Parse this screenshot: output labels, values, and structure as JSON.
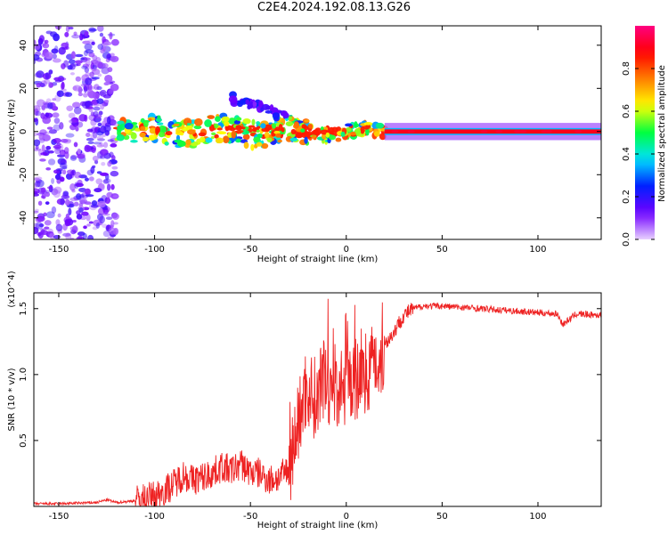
{
  "title": "C2E4.2024.192.08.13.G26",
  "chart_data": [
    {
      "type": "heatmap",
      "xlabel": "Height of straight line (km)",
      "ylabel": "Frequency (Hz)",
      "xlim": [
        -163,
        133
      ],
      "ylim": [
        -50,
        49
      ],
      "x_ticks": [
        -150,
        -100,
        -50,
        0,
        50,
        100
      ],
      "y_ticks": [
        -40,
        -20,
        0,
        20,
        40
      ],
      "colorbar": {
        "label": "Normalized spectral amplitude",
        "range": [
          0,
          1
        ],
        "ticks": [
          0.0,
          0.2,
          0.4,
          0.6,
          0.8
        ],
        "colormap": [
          "#e8d0ff",
          "#7000ff",
          "#0020ff",
          "#00e0ff",
          "#00ff40",
          "#ffff00",
          "#ff8000",
          "#ff0000",
          "#ff0080"
        ]
      },
      "regions": [
        {
          "x_range": [
            -163,
            -120
          ],
          "freq_range": [
            -50,
            49
          ],
          "amplitude": [
            0.05,
            0.2
          ],
          "pattern": "scattered noise"
        },
        {
          "x_range": [
            -120,
            20
          ],
          "freq_range": [
            -6,
            6
          ],
          "amplitude": [
            0.2,
            0.8
          ],
          "pattern": "central signal band"
        },
        {
          "x_range": [
            -60,
            -30
          ],
          "freq_range": [
            5,
            19
          ],
          "amplitude": [
            0.1,
            0.25
          ],
          "pattern": "diagonal sideband"
        },
        {
          "x_range": [
            20,
            133
          ],
          "freq_range": [
            -1,
            1
          ],
          "amplitude": [
            0.85,
            0.95
          ],
          "pattern": "steady carrier line"
        }
      ]
    },
    {
      "type": "line",
      "xlabel": "Height of straight line (km)",
      "ylabel": "SNR (10 * v/v)",
      "y_multiplier": "(x10^4)",
      "xlim": [
        -163,
        133
      ],
      "ylim": [
        0,
        1.62
      ],
      "x_ticks": [
        -150,
        -100,
        -50,
        0,
        50,
        100
      ],
      "y_ticks": [
        0.5,
        1.0,
        1.5
      ],
      "y_tick_labels": [
        "0.5",
        "1.0",
        "1.5"
      ],
      "series": [
        {
          "color": "#ee2222",
          "x": [
            -163,
            -150,
            -140,
            -130,
            -125,
            -120,
            -112,
            -105,
            -100,
            -95,
            -90,
            -85,
            -80,
            -75,
            -70,
            -65,
            -60,
            -55,
            -50,
            -45,
            -40,
            -35,
            -30,
            -27,
            -24,
            -21,
            -18,
            -15,
            -12,
            -9,
            -6,
            -3,
            0,
            3,
            6,
            9,
            12,
            15,
            18,
            21,
            24,
            27,
            30,
            35,
            40,
            45,
            50,
            60,
            70,
            80,
            90,
            100,
            110,
            113,
            120,
            133
          ],
          "y": [
            0.02,
            0.02,
            0.025,
            0.03,
            0.05,
            0.03,
            0.04,
            0.06,
            0.08,
            0.12,
            0.17,
            0.24,
            0.2,
            0.22,
            0.25,
            0.3,
            0.27,
            0.32,
            0.26,
            0.25,
            0.2,
            0.22,
            0.28,
            0.5,
            0.7,
            0.9,
            0.85,
            0.8,
            0.95,
            0.9,
            0.92,
            0.9,
            0.88,
            0.98,
            0.95,
            1.0,
            1.05,
            1.1,
            1.12,
            1.25,
            1.3,
            1.38,
            1.45,
            1.5,
            1.52,
            1.52,
            1.52,
            1.51,
            1.5,
            1.49,
            1.48,
            1.47,
            1.46,
            1.38,
            1.46,
            1.45
          ]
        }
      ]
    }
  ]
}
